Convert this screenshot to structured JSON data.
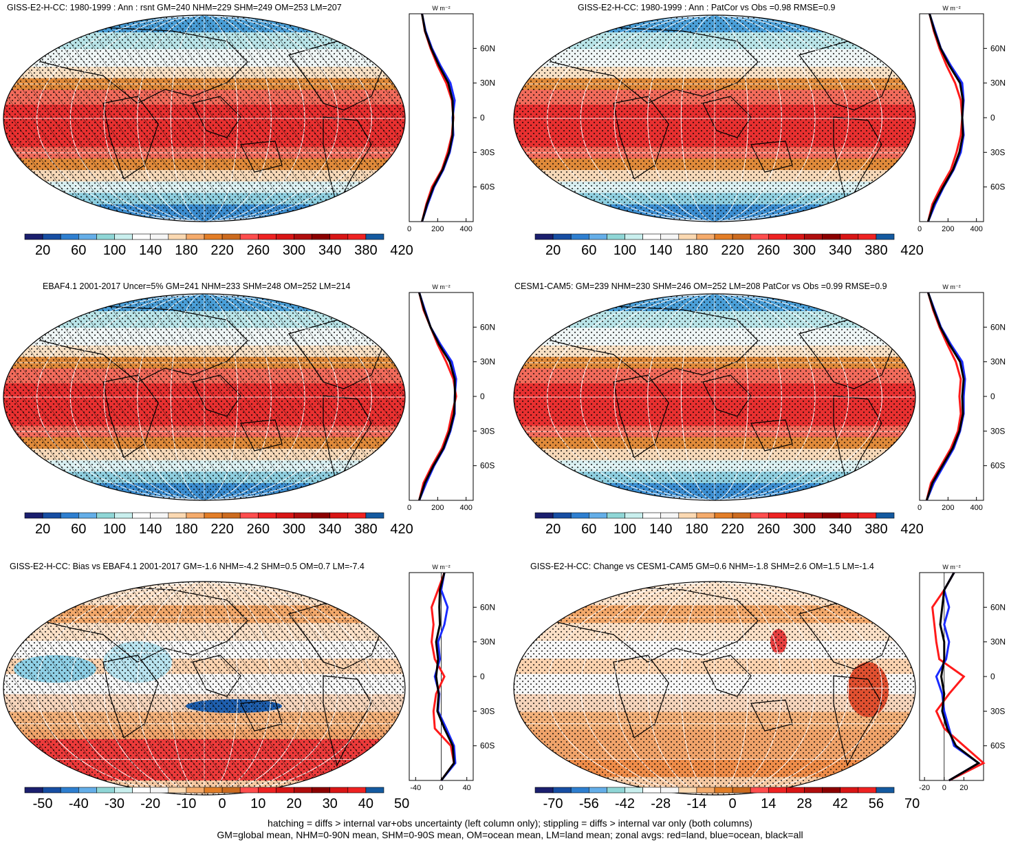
{
  "footer": {
    "line1": "hatching = diffs > internal var+obs uncertainty (left column only); stippling = diffs > internal var only (both columns)",
    "line2": "GM=global mean, NHM=0-90N mean, SHM=0-90S mean, OM=ocean mean, LM=land mean; zonal avgs: red=land, blue=ocean, black=all"
  },
  "profile_unit": "W m⁻²",
  "lat_ticks": [
    "60N",
    "30N",
    "0",
    "30S",
    "60S"
  ],
  "colors": {
    "land": "#ff1a1a",
    "ocean": "#1a2bff",
    "all": "#000000"
  },
  "chart_data": [
    {
      "type": "heatmap",
      "id": "p1",
      "title": "GISS-E2-H-CC: 1980-1999 : Ann : rsnt GM=240 NHM=229 SHM=249 OM=253 LM=207",
      "colorbar_labels": [
        "20",
        "60",
        "100",
        "140",
        "180",
        "220",
        "260",
        "300",
        "340",
        "380",
        "420"
      ],
      "colors": [
        "#1b1f6e",
        "#174ea3",
        "#2e7fd0",
        "#64aee8",
        "#8fd6d6",
        "#c9efee",
        "#ffffff",
        "#f6f6f6",
        "#fbd9b2",
        "#f5ab6b",
        "#e37d26",
        "#cc6a1e",
        "#ff4d4d",
        "#ee2222",
        "#d81515",
        "#b00d0d",
        "#8c0000",
        "#d81515",
        "#ee2222",
        "#145aa0"
      ],
      "hatched": true,
      "stippled": true,
      "profile": {
        "xticks": [
          "0",
          "200",
          "400"
        ],
        "xlim": [
          0,
          450
        ],
        "ylim": [
          -90,
          90
        ],
        "lat": [
          -90,
          -75,
          -60,
          -45,
          -30,
          -15,
          0,
          15,
          30,
          45,
          60,
          75,
          90
        ],
        "land": [
          90,
          120,
          160,
          230,
          270,
          300,
          310,
          300,
          260,
          200,
          150,
          110,
          90
        ],
        "ocean": [
          90,
          130,
          175,
          240,
          285,
          310,
          305,
          320,
          290,
          220,
          160,
          115,
          90
        ],
        "all": [
          90,
          125,
          170,
          235,
          280,
          305,
          308,
          305,
          275,
          210,
          155,
          112,
          90
        ]
      }
    },
    {
      "type": "heatmap",
      "id": "p2",
      "title": "GISS-E2-H-CC: 1980-1999 : Ann : PatCor vs Obs =0.98 RMSE=0.9",
      "colorbar_labels": [
        "20",
        "60",
        "100",
        "140",
        "180",
        "220",
        "260",
        "300",
        "340",
        "380",
        "420"
      ],
      "colors": [
        "#1b1f6e",
        "#174ea3",
        "#2e7fd0",
        "#64aee8",
        "#8fd6d6",
        "#c9efee",
        "#ffffff",
        "#f6f6f6",
        "#fbd9b2",
        "#f5ab6b",
        "#e37d26",
        "#cc6a1e",
        "#ff4d4d",
        "#ee2222",
        "#d81515",
        "#b00d0d",
        "#8c0000",
        "#d81515",
        "#ee2222",
        "#145aa0"
      ],
      "hatched": false,
      "stippled": true,
      "profile": {
        "xticks": [
          "0",
          "200",
          "400"
        ],
        "xlim": [
          0,
          450
        ],
        "ylim": [
          -90,
          90
        ],
        "lat": [
          -90,
          -75,
          -60,
          -45,
          -30,
          -15,
          0,
          15,
          30,
          45,
          60,
          75,
          90
        ],
        "land": [
          60,
          90,
          150,
          220,
          260,
          290,
          300,
          290,
          250,
          190,
          140,
          100,
          70
        ],
        "ocean": [
          60,
          110,
          170,
          240,
          290,
          310,
          300,
          310,
          300,
          220,
          150,
          110,
          70
        ],
        "all": [
          60,
          100,
          165,
          235,
          280,
          305,
          300,
          305,
          285,
          210,
          148,
          105,
          70
        ]
      }
    },
    {
      "type": "heatmap",
      "id": "p3",
      "title": "EBAF4.1 2001-2017 Uncer=5% GM=241 NHM=233 SHM=248 OM=252 LM=214",
      "colorbar_labels": [
        "20",
        "60",
        "100",
        "140",
        "180",
        "220",
        "260",
        "300",
        "340",
        "380",
        "420"
      ],
      "colors": [
        "#1b1f6e",
        "#174ea3",
        "#2e7fd0",
        "#64aee8",
        "#8fd6d6",
        "#c9efee",
        "#ffffff",
        "#f6f6f6",
        "#fbd9b2",
        "#f5ab6b",
        "#e37d26",
        "#cc6a1e",
        "#ff4d4d",
        "#ee2222",
        "#d81515",
        "#b00d0d",
        "#8c0000",
        "#d81515",
        "#ee2222",
        "#145aa0"
      ],
      "hatched": true,
      "stippled": true,
      "profile": {
        "xticks": [
          "0",
          "200",
          "400"
        ],
        "xlim": [
          0,
          450
        ],
        "ylim": [
          -90,
          90
        ],
        "lat": [
          -90,
          -75,
          -60,
          -45,
          -30,
          -15,
          0,
          15,
          30,
          45,
          60,
          75,
          90
        ],
        "land": [
          70,
          100,
          160,
          230,
          275,
          300,
          330,
          310,
          260,
          200,
          150,
          100,
          70
        ],
        "ocean": [
          70,
          120,
          175,
          245,
          290,
          320,
          320,
          330,
          300,
          220,
          150,
          110,
          70
        ],
        "all": [
          70,
          110,
          170,
          240,
          285,
          315,
          322,
          320,
          285,
          210,
          150,
          105,
          70
        ]
      }
    },
    {
      "type": "heatmap",
      "id": "p4",
      "title": "CESM1-CAM5: GM=239 NHM=230 SHM=246 OM=252 LM=208 PatCor vs Obs =0.99 RMSE=0.9",
      "colorbar_labels": [
        "20",
        "60",
        "100",
        "140",
        "180",
        "220",
        "260",
        "300",
        "340",
        "380",
        "420"
      ],
      "colors": [
        "#1b1f6e",
        "#174ea3",
        "#2e7fd0",
        "#64aee8",
        "#8fd6d6",
        "#c9efee",
        "#ffffff",
        "#f6f6f6",
        "#fbd9b2",
        "#f5ab6b",
        "#e37d26",
        "#cc6a1e",
        "#ff4d4d",
        "#ee2222",
        "#d81515",
        "#b00d0d",
        "#8c0000",
        "#d81515",
        "#ee2222",
        "#145aa0"
      ],
      "hatched": false,
      "stippled": true,
      "profile": {
        "xticks": [
          "0",
          "200",
          "400"
        ],
        "xlim": [
          0,
          450
        ],
        "ylim": [
          -90,
          90
        ],
        "lat": [
          -90,
          -75,
          -60,
          -45,
          -30,
          -15,
          0,
          15,
          30,
          45,
          60,
          75,
          90
        ],
        "land": [
          50,
          80,
          150,
          220,
          270,
          290,
          280,
          290,
          255,
          195,
          140,
          95,
          60
        ],
        "ocean": [
          50,
          100,
          170,
          240,
          285,
          310,
          310,
          320,
          300,
          220,
          150,
          105,
          60
        ],
        "all": [
          50,
          90,
          160,
          232,
          280,
          305,
          300,
          310,
          285,
          210,
          146,
          100,
          60
        ]
      }
    },
    {
      "type": "heatmap",
      "id": "p5",
      "title": "GISS-E2-H-CC: Bias vs EBAF4.1 2001-2017 GM=-1.6 NHM=-4.2 SHM=0.5 OM=0.7 LM=-7.4",
      "colorbar_labels": [
        "-50",
        "-40",
        "-30",
        "-20",
        "-10",
        "0",
        "10",
        "20",
        "30",
        "40",
        "50"
      ],
      "colors": [
        "#1b1f6e",
        "#174ea3",
        "#2e7fd0",
        "#64aee8",
        "#8fd6d6",
        "#c9efee",
        "#ffffff",
        "#f6f6f6",
        "#fbd9b2",
        "#f5ab6b",
        "#e37d26",
        "#cc6a1e",
        "#ff4d4d",
        "#ee2222",
        "#d81515",
        "#b00d0d",
        "#8c0000",
        "#d81515",
        "#ee2222",
        "#145aa0"
      ],
      "hatched": true,
      "stippled": true,
      "profile": {
        "xticks": [
          "-40",
          "0",
          "40"
        ],
        "xlim": [
          -50,
          50
        ],
        "ylim": [
          -90,
          90
        ],
        "lat": [
          -90,
          -75,
          -60,
          -45,
          -30,
          -15,
          0,
          15,
          30,
          45,
          60,
          75,
          90
        ],
        "land": [
          0,
          20,
          15,
          -10,
          -12,
          -8,
          5,
          -10,
          -15,
          -12,
          -15,
          -5,
          5
        ],
        "ocean": [
          0,
          22,
          20,
          8,
          -5,
          -3,
          -10,
          -2,
          -5,
          5,
          10,
          0,
          5
        ],
        "all": [
          0,
          20,
          18,
          5,
          -6,
          -4,
          -8,
          -5,
          -8,
          -2,
          -3,
          -2,
          5
        ]
      }
    },
    {
      "type": "heatmap",
      "id": "p6",
      "title": "GISS-E2-H-CC: Change vs CESM1-CAM5 GM=0.6 NHM=-1.8 SHM=2.6 OM=1.5 LM=-1.4",
      "colorbar_labels": [
        "-70",
        "-56",
        "-42",
        "-28",
        "-14",
        "0",
        "14",
        "28",
        "42",
        "56",
        "70"
      ],
      "colors": [
        "#1b1f6e",
        "#174ea3",
        "#2e7fd0",
        "#64aee8",
        "#8fd6d6",
        "#c9efee",
        "#ffffff",
        "#f6f6f6",
        "#fbd9b2",
        "#f5ab6b",
        "#e37d26",
        "#cc6a1e",
        "#ff4d4d",
        "#ee2222",
        "#d81515",
        "#b00d0d",
        "#8c0000",
        "#d81515",
        "#ee2222",
        "#145aa0"
      ],
      "hatched": false,
      "stippled": true,
      "profile": {
        "xticks": [
          "-20",
          "0",
          "20"
        ],
        "xlim": [
          -25,
          40
        ],
        "ylim": [
          -90,
          90
        ],
        "lat": [
          -90,
          -75,
          -60,
          -45,
          -30,
          -15,
          0,
          15,
          30,
          45,
          60,
          75,
          90
        ],
        "land": [
          5,
          40,
          20,
          0,
          -8,
          5,
          20,
          -5,
          -8,
          -10,
          -12,
          0,
          10
        ],
        "ocean": [
          5,
          35,
          10,
          5,
          0,
          -2,
          -8,
          2,
          5,
          0,
          5,
          0,
          10
        ],
        "all": [
          5,
          35,
          12,
          3,
          -2,
          0,
          -3,
          0,
          0,
          -4,
          -2,
          0,
          10
        ]
      }
    }
  ]
}
